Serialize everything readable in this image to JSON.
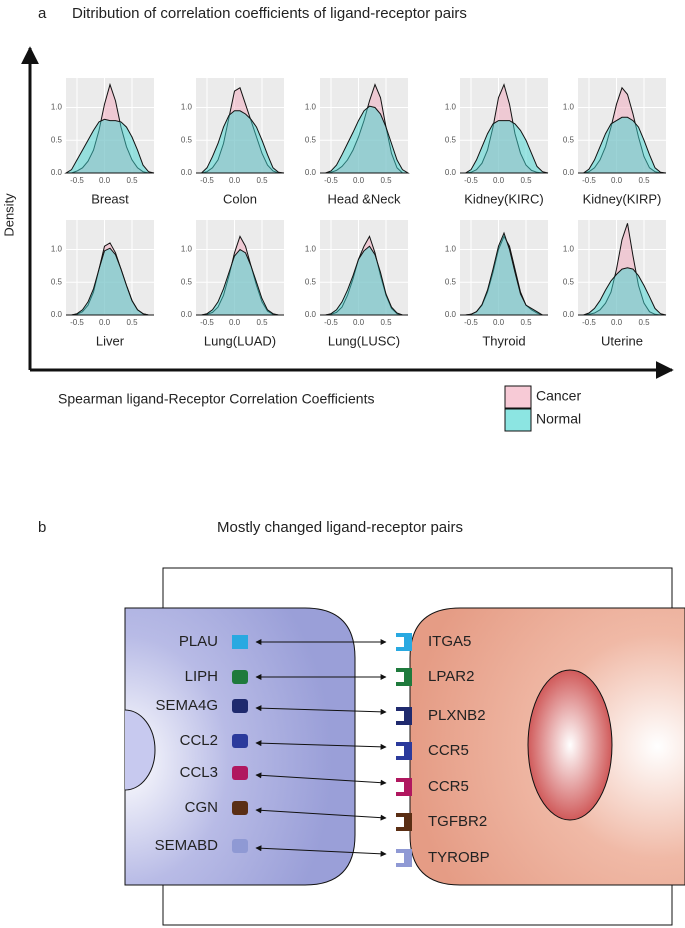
{
  "panel_a": {
    "label": "a",
    "title": "Ditribution of correlation coefficients of ligand-receptor pairs",
    "y_axis_label": "Density",
    "x_axis_label": "Spearman ligand-Receptor Correlation Coefficients"
  },
  "chart_data": {
    "type": "density",
    "x": [
      -0.7,
      -0.6,
      -0.5,
      -0.4,
      -0.3,
      -0.2,
      -0.1,
      0,
      0.1,
      0.2,
      0.3,
      0.4,
      0.5,
      0.6,
      0.7,
      0.8,
      0.9
    ],
    "xlim": [
      -0.7,
      0.9
    ],
    "ylim": [
      0,
      1.45
    ],
    "xticks": [
      -0.5,
      {
        "value": 0,
        "label": "0.0"
      },
      0.5
    ],
    "yticks": [
      {
        "value": 0,
        "label": "0.0"
      },
      0.5,
      {
        "value": 1,
        "label": "1.0"
      }
    ],
    "grid": true,
    "series": [
      {
        "name": "Cancer",
        "color": "#f2a7bb"
      },
      {
        "name": "Normal",
        "color": "#3fd3cf"
      }
    ],
    "panels": [
      {
        "title": "Breast",
        "series": [
          {
            "values": [
              0,
              0,
              0.03,
              0.08,
              0.18,
              0.35,
              0.65,
              1.05,
              1.35,
              1.1,
              0.7,
              0.4,
              0.2,
              0.08,
              0.02,
              0,
              0
            ]
          },
          {
            "values": [
              0,
              0.05,
              0.2,
              0.35,
              0.5,
              0.65,
              0.78,
              0.82,
              0.8,
              0.8,
              0.78,
              0.7,
              0.55,
              0.35,
              0.12,
              0.02,
              0
            ]
          }
        ]
      },
      {
        "title": "Colon",
        "series": [
          {
            "values": [
              0,
              0,
              0.02,
              0.08,
              0.2,
              0.45,
              0.85,
              1.25,
              1.3,
              1.05,
              0.8,
              0.55,
              0.3,
              0.12,
              0.03,
              0,
              0
            ]
          },
          {
            "values": [
              0,
              0,
              0.08,
              0.25,
              0.45,
              0.7,
              0.88,
              0.95,
              0.95,
              0.9,
              0.82,
              0.7,
              0.5,
              0.28,
              0.08,
              0.01,
              0
            ]
          }
        ]
      },
      {
        "title": "Head &Neck",
        "series": [
          {
            "values": [
              0,
              0,
              0.01,
              0.04,
              0.1,
              0.2,
              0.35,
              0.55,
              0.8,
              1.1,
              1.35,
              1.15,
              0.7,
              0.3,
              0.08,
              0,
              0
            ]
          },
          {
            "values": [
              0,
              0,
              0.03,
              0.12,
              0.28,
              0.45,
              0.62,
              0.8,
              0.95,
              1.02,
              1.0,
              0.9,
              0.7,
              0.45,
              0.2,
              0.05,
              0
            ]
          }
        ]
      },
      {
        "title": "Kidney(KIRC)",
        "series": [
          {
            "values": [
              0,
              0,
              0.01,
              0.05,
              0.15,
              0.35,
              0.7,
              1.15,
              1.35,
              1.05,
              0.6,
              0.3,
              0.12,
              0.04,
              0.01,
              0,
              0
            ]
          },
          {
            "values": [
              0,
              0,
              0.05,
              0.2,
              0.4,
              0.6,
              0.75,
              0.8,
              0.8,
              0.8,
              0.75,
              0.65,
              0.5,
              0.3,
              0.1,
              0.02,
              0
            ]
          }
        ]
      },
      {
        "title": "Kidney(KIRP)",
        "series": [
          {
            "values": [
              0,
              0,
              0.02,
              0.08,
              0.2,
              0.4,
              0.7,
              1.05,
              1.3,
              1.2,
              0.9,
              0.55,
              0.25,
              0.08,
              0.02,
              0,
              0
            ]
          },
          {
            "values": [
              0,
              0,
              0.06,
              0.2,
              0.4,
              0.6,
              0.75,
              0.8,
              0.85,
              0.85,
              0.8,
              0.7,
              0.5,
              0.28,
              0.08,
              0.01,
              0
            ]
          }
        ]
      },
      {
        "title": "Liver",
        "series": [
          {
            "values": [
              0,
              0,
              0.01,
              0.05,
              0.15,
              0.35,
              0.7,
              1.05,
              1.1,
              0.95,
              0.7,
              0.45,
              0.22,
              0.08,
              0.02,
              0,
              0
            ]
          },
          {
            "values": [
              0,
              0,
              0.02,
              0.08,
              0.2,
              0.4,
              0.7,
              0.98,
              1.02,
              0.92,
              0.7,
              0.45,
              0.22,
              0.08,
              0.02,
              0,
              0
            ]
          }
        ]
      },
      {
        "title": "Lung(LUAD)",
        "series": [
          {
            "values": [
              0,
              0,
              0.01,
              0.04,
              0.12,
              0.3,
              0.6,
              0.95,
              1.2,
              1.05,
              0.75,
              0.45,
              0.2,
              0.06,
              0.01,
              0,
              0
            ]
          },
          {
            "values": [
              0,
              0,
              0.02,
              0.08,
              0.2,
              0.4,
              0.65,
              0.9,
              1.0,
              0.95,
              0.75,
              0.5,
              0.25,
              0.08,
              0.02,
              0,
              0
            ]
          }
        ]
      },
      {
        "title": "Lung(LUSC)",
        "series": [
          {
            "values": [
              0,
              0,
              0.01,
              0.04,
              0.12,
              0.3,
              0.55,
              0.85,
              1.05,
              1.2,
              0.95,
              0.6,
              0.3,
              0.1,
              0.02,
              0,
              0
            ]
          },
          {
            "values": [
              0,
              0,
              0.02,
              0.08,
              0.2,
              0.38,
              0.6,
              0.85,
              0.98,
              1.05,
              0.92,
              0.65,
              0.32,
              0.12,
              0.03,
              0,
              0
            ]
          }
        ]
      },
      {
        "title": "Thyroid",
        "series": [
          {
            "values": [
              0,
              0,
              0.01,
              0.05,
              0.15,
              0.35,
              0.65,
              1.0,
              1.2,
              1.05,
              0.7,
              0.35,
              0.15,
              0.08,
              0.03,
              0,
              0
            ]
          },
          {
            "values": [
              0,
              0,
              0.01,
              0.05,
              0.16,
              0.38,
              0.7,
              1.05,
              1.25,
              1.0,
              0.65,
              0.32,
              0.15,
              0.1,
              0.05,
              0,
              0
            ]
          }
        ]
      },
      {
        "title": "Uterine",
        "series": [
          {
            "values": [
              0,
              0,
              0.01,
              0.03,
              0.08,
              0.18,
              0.35,
              0.7,
              1.15,
              1.4,
              0.9,
              0.45,
              0.18,
              0.05,
              0.01,
              0,
              0
            ]
          },
          {
            "values": [
              0,
              0,
              0.03,
              0.1,
              0.22,
              0.38,
              0.52,
              0.62,
              0.7,
              0.72,
              0.7,
              0.6,
              0.45,
              0.28,
              0.1,
              0.02,
              0
            ]
          }
        ]
      }
    ]
  },
  "panel_b": {
    "label": "b",
    "title": "Mostly changed ligand-receptor pairs",
    "ligands": [
      "PLAU",
      "LIPH",
      "SEMA4G",
      "CCL2",
      "CCL3",
      "CGN",
      "SEMABD"
    ],
    "receptors": [
      "ITGA5",
      "LPAR2",
      "PLXNB2",
      "CCR5",
      "CCR5",
      "TGFBR2",
      "TYROBP"
    ]
  }
}
